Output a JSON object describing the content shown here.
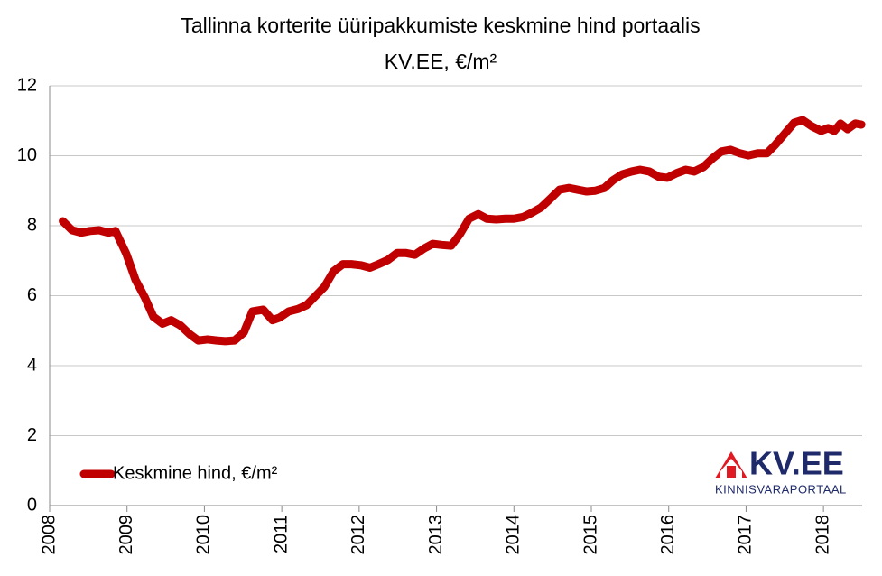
{
  "chart_data": {
    "type": "line",
    "title": "Tallinna korterite üüripakkumiste keskmine hind portaalis",
    "subtitle": "KV.EE, €/m²",
    "logo": {
      "text": "KV.EE",
      "caption": "KINNISVARAPORTAAL"
    },
    "xlim": [
      2008,
      2018.5
    ],
    "xticks": [
      2008,
      2009,
      2010,
      2011,
      2012,
      2013,
      2014,
      2015,
      2016,
      2017,
      2018
    ],
    "ylim": [
      0,
      12
    ],
    "yticks": [
      0,
      2,
      4,
      6,
      8,
      10,
      12
    ],
    "grid": true,
    "legend": "bottom-left",
    "x": [
      2008.17,
      2008.29,
      2008.41,
      2008.52,
      2008.64,
      2008.76,
      2008.85,
      2008.99,
      2009.11,
      2009.23,
      2009.34,
      2009.46,
      2009.57,
      2009.69,
      2009.81,
      2009.92,
      2010.04,
      2010.16,
      2010.27,
      2010.39,
      2010.51,
      2010.62,
      2010.76,
      2010.88,
      2010.97,
      2011.09,
      2011.21,
      2011.32,
      2011.44,
      2011.55,
      2011.67,
      2011.79,
      2011.9,
      2012.02,
      2012.14,
      2012.25,
      2012.37,
      2012.49,
      2012.6,
      2012.72,
      2012.84,
      2012.95,
      2013.07,
      2013.19,
      2013.3,
      2013.42,
      2013.54,
      2013.65,
      2013.77,
      2013.89,
      2014.0,
      2014.12,
      2014.24,
      2014.35,
      2014.47,
      2014.59,
      2014.71,
      2014.82,
      2014.94,
      2015.05,
      2015.17,
      2015.28,
      2015.4,
      2015.52,
      2015.63,
      2015.75,
      2015.87,
      2015.98,
      2016.1,
      2016.22,
      2016.33,
      2016.45,
      2016.57,
      2016.68,
      2016.8,
      2016.92,
      2017.03,
      2017.15,
      2017.27,
      2017.38,
      2017.5,
      2017.62,
      2017.73,
      2017.85,
      2017.97,
      2018.06,
      2018.14,
      2018.22,
      2018.31,
      2018.41,
      2018.49
    ],
    "series": [
      {
        "name": "Keskmine hind, €/m²",
        "color": "#c00000",
        "values": [
          8.13,
          7.87,
          7.8,
          7.85,
          7.87,
          7.8,
          7.85,
          7.2,
          6.45,
          5.95,
          5.4,
          5.2,
          5.3,
          5.15,
          4.9,
          4.72,
          4.75,
          4.72,
          4.7,
          4.72,
          4.95,
          5.55,
          5.6,
          5.3,
          5.37,
          5.55,
          5.62,
          5.73,
          6.0,
          6.25,
          6.7,
          6.9,
          6.9,
          6.87,
          6.8,
          6.9,
          7.02,
          7.22,
          7.22,
          7.17,
          7.35,
          7.48,
          7.45,
          7.43,
          7.75,
          8.2,
          8.33,
          8.2,
          8.18,
          8.2,
          8.2,
          8.25,
          8.38,
          8.52,
          8.77,
          9.03,
          9.08,
          9.03,
          8.98,
          9.0,
          9.08,
          9.3,
          9.47,
          9.55,
          9.6,
          9.55,
          9.4,
          9.37,
          9.5,
          9.6,
          9.55,
          9.68,
          9.93,
          10.12,
          10.17,
          10.07,
          10.01,
          10.07,
          10.07,
          10.32,
          10.63,
          10.94,
          11.02,
          10.84,
          10.71,
          10.79,
          10.71,
          10.92,
          10.76,
          10.92,
          10.89
        ]
      }
    ]
  }
}
